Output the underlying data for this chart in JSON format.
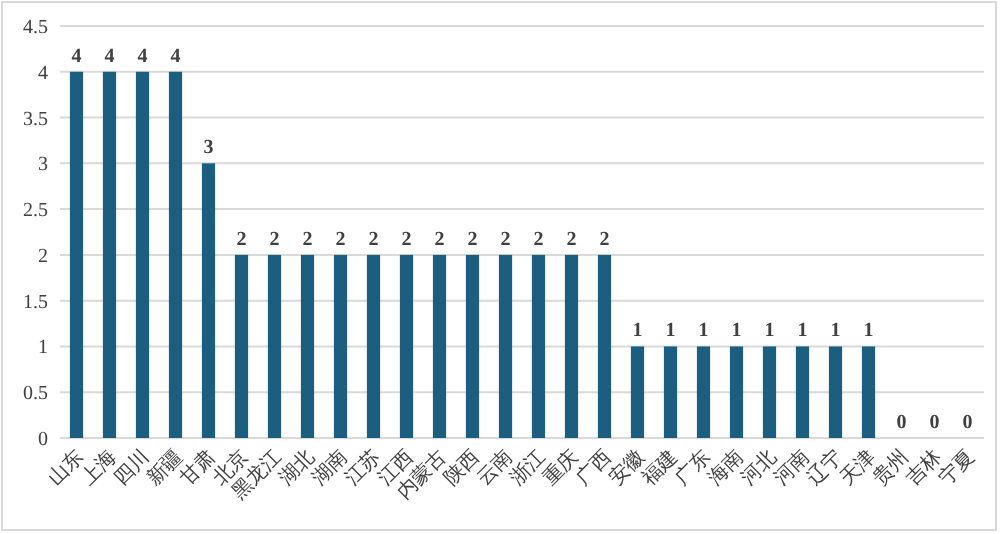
{
  "chart_data": {
    "type": "bar",
    "categories": [
      "山东",
      "上海",
      "四川",
      "新疆",
      "甘肃",
      "北京",
      "黑龙江",
      "湖北",
      "湖南",
      "江苏",
      "江西",
      "内蒙古",
      "陕西",
      "云南",
      "浙江",
      "重庆",
      "广西",
      "安徽",
      "福建",
      "广东",
      "海南",
      "河北",
      "河南",
      "辽宁",
      "天津",
      "贵州",
      "吉林",
      "宁夏"
    ],
    "values": [
      4,
      4,
      4,
      4,
      3,
      2,
      2,
      2,
      2,
      2,
      2,
      2,
      2,
      2,
      2,
      2,
      2,
      1,
      1,
      1,
      1,
      1,
      1,
      1,
      1,
      0,
      0,
      0
    ],
    "color": "#1b5e7f",
    "ylim": [
      0,
      4.5
    ],
    "yticks": [
      0,
      0.5,
      1,
      1.5,
      2,
      2.5,
      3,
      3.5,
      4,
      4.5
    ],
    "grid": "y",
    "data_labels": true
  }
}
